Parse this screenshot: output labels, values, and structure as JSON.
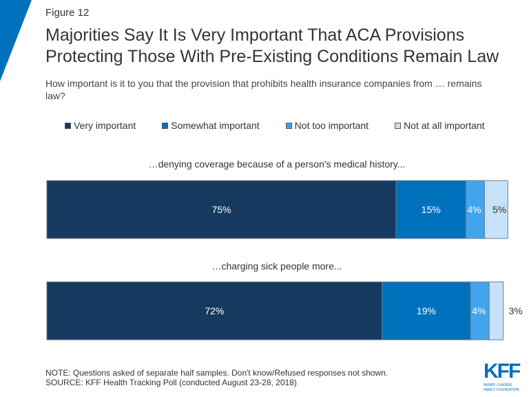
{
  "figure_label": "Figure 12",
  "title_line1": "Majorities Say It Is Very Important That ACA Provisions",
  "title_line2": "Protecting Those With Pre-Existing Conditions Remain Law",
  "subtitle": "How important is it to you that the provision that prohibits health insurance companies from … remains law?",
  "note": "NOTE: Questions asked of separate half samples. Don't know/Refused responses not shown.",
  "source": "SOURCE: KFF Health Tracking Poll (conducted August 23-28, 2018)",
  "logo": {
    "text": "KFF",
    "line1": "HENRY J KAISER",
    "line2": "FAMILY FOUNDATION",
    "color": "#0071bc"
  },
  "chart_data": {
    "type": "stacked-bar-horizontal",
    "legend_position": "top",
    "grid": false,
    "xlim": [
      0,
      100
    ],
    "categories": [
      "…denying coverage because of a person's medical history...",
      "…charging sick people more..."
    ],
    "series": [
      {
        "name": "Very important",
        "color": "#163a5f",
        "values": [
          75,
          72
        ]
      },
      {
        "name": "Somewhat important",
        "color": "#0071bc",
        "values": [
          15,
          19
        ]
      },
      {
        "name": "Not too important",
        "color": "#41a5ee",
        "values": [
          4,
          4
        ]
      },
      {
        "name": "Not at all important",
        "color": "#c6e2f8",
        "values": [
          5,
          3
        ]
      }
    ],
    "data_labels": [
      [
        "75%",
        "15%",
        "4%",
        "5%"
      ],
      [
        "72%",
        "19%",
        "4%",
        "3%"
      ]
    ]
  }
}
